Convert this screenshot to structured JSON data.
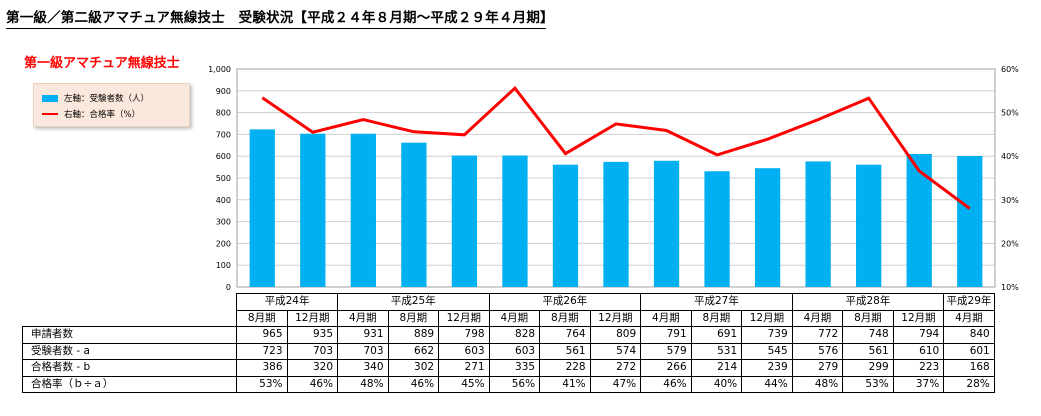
{
  "page_title": "第一級／第二級アマチュア無線技士　受験状況【平成２４年８月期〜平成２９年４月期】",
  "section_title": "第一級アマチュア無線技士",
  "legend": {
    "bar_label": "左軸：受験者数（人）",
    "line_label": "右軸：合格率（%）"
  },
  "colors": {
    "bar": "#00b0f0",
    "line": "#ff0000",
    "title_red": "#ff0000"
  },
  "chart_data": {
    "type": "bar",
    "categories": [
      "8月期",
      "12月期",
      "4月期",
      "8月期",
      "12月期",
      "4月期",
      "8月期",
      "12月期",
      "4月期",
      "8月期",
      "12月期",
      "4月期",
      "8月期",
      "12月期",
      "4月期"
    ],
    "year_groups": [
      {
        "label": "平成24年",
        "span": 2
      },
      {
        "label": "平成25年",
        "span": 3
      },
      {
        "label": "平成26年",
        "span": 3
      },
      {
        "label": "平成27年",
        "span": 3
      },
      {
        "label": "平成28年",
        "span": 3
      },
      {
        "label": "平成29年",
        "span": 1
      }
    ],
    "series": [
      {
        "name": "左軸：受験者数（人）",
        "type": "bar",
        "axis": "left",
        "values": [
          723,
          703,
          703,
          662,
          603,
          603,
          561,
          574,
          579,
          531,
          545,
          576,
          561,
          610,
          601
        ]
      },
      {
        "name": "右軸：合格率（%）",
        "type": "line",
        "axis": "right",
        "values": [
          53.4,
          45.5,
          48.4,
          45.6,
          44.9,
          55.6,
          40.6,
          47.4,
          45.9,
          40.3,
          43.9,
          48.4,
          53.3,
          36.6,
          28.0
        ]
      }
    ],
    "left_axis": {
      "min": 0,
      "max": 1000,
      "step": 100,
      "tick_labels": [
        "0",
        "100",
        "200",
        "300",
        "400",
        "500",
        "600",
        "700",
        "800",
        "900",
        "1,000"
      ]
    },
    "right_axis": {
      "min": 10,
      "max": 60,
      "step": 10,
      "tick_labels": [
        "10%",
        "20%",
        "30%",
        "40%",
        "50%",
        "60%"
      ]
    },
    "grid": true,
    "legend_position": "top-left"
  },
  "table": {
    "rows": [
      {
        "label": "申請者数",
        "values": [
          "965",
          "935",
          "931",
          "889",
          "798",
          "828",
          "764",
          "809",
          "791",
          "691",
          "739",
          "772",
          "748",
          "794",
          "840"
        ]
      },
      {
        "label": "受験者数 - a",
        "values": [
          "723",
          "703",
          "703",
          "662",
          "603",
          "603",
          "561",
          "574",
          "579",
          "531",
          "545",
          "576",
          "561",
          "610",
          "601"
        ]
      },
      {
        "label": "合格者数 - b",
        "values": [
          "386",
          "320",
          "340",
          "302",
          "271",
          "335",
          "228",
          "272",
          "266",
          "214",
          "239",
          "279",
          "299",
          "223",
          "168"
        ]
      },
      {
        "label": "合格率（ｂ÷ａ）",
        "values": [
          "53%",
          "46%",
          "48%",
          "46%",
          "45%",
          "56%",
          "41%",
          "47%",
          "46%",
          "40%",
          "44%",
          "48%",
          "53%",
          "37%",
          "28%"
        ]
      }
    ]
  }
}
